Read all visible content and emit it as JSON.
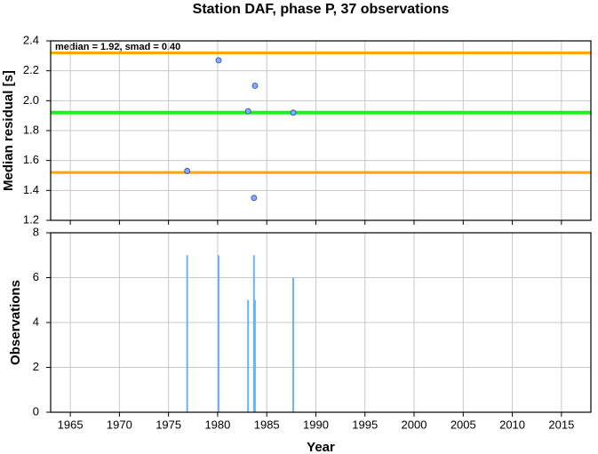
{
  "chart_data": [
    {
      "type": "scatter",
      "title": "Station DAF, phase P, 37 observations",
      "y_label": "Median residual [s]",
      "annotation": "median = 1.92, smad = 0.40",
      "x": [
        1976.9,
        1980.1,
        1983.1,
        1983.8,
        1983.7,
        1987.7
      ],
      "values": [
        1.53,
        2.27,
        1.93,
        2.1,
        1.35,
        1.92
      ],
      "color": "#88aaff",
      "hlines": [
        {
          "value": 2.32,
          "color": "#ffa500"
        },
        {
          "value": 1.92,
          "color": "#22ee22"
        },
        {
          "value": 1.52,
          "color": "#ffa500"
        }
      ],
      "xlim": [
        1963,
        2018
      ],
      "ylim": [
        1.2,
        2.4
      ],
      "xticks": [
        1965,
        1970,
        1975,
        1980,
        1985,
        1990,
        1995,
        2000,
        2005,
        2010,
        2015
      ],
      "yticks": [
        1.2,
        1.4,
        1.6,
        1.8,
        {
          "value": 2,
          "label": "2.0"
        },
        2.2,
        2.4
      ],
      "grid": true
    },
    {
      "type": "bar",
      "x_label": "Year",
      "y_label": "Observations",
      "x": [
        1976.9,
        1980.1,
        1983.1,
        1983.7,
        1983.8,
        1987.7
      ],
      "values": [
        7,
        7,
        5,
        7,
        5,
        6
      ],
      "color": "#66b3ff",
      "xlim": [
        1963,
        2018
      ],
      "ylim": [
        0,
        8
      ],
      "xticks": [
        1965,
        1970,
        1975,
        1980,
        1985,
        1990,
        1995,
        2000,
        2005,
        2010,
        2015
      ],
      "yticks": [
        0,
        2,
        4,
        6,
        8
      ],
      "grid": true
    }
  ]
}
